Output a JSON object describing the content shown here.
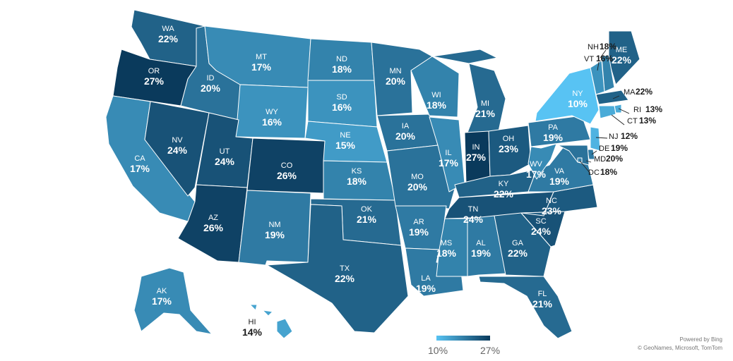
{
  "colors": {
    "scale_min": "#58c3f3",
    "scale_max": "#0a3a5c",
    "label_on_map": "#ffffff",
    "label_off_map": "#1a1a1a",
    "border": "#ffffff"
  },
  "legend": {
    "min_label": "10%",
    "max_label": "27%",
    "min_value": 10,
    "max_value": 27
  },
  "attribution": {
    "line1": "Powered by Bing",
    "line2": "© GeoNames, Microsoft, TomTom"
  },
  "states": [
    {
      "abbr": "WA",
      "value": "22%"
    },
    {
      "abbr": "OR",
      "value": "27%"
    },
    {
      "abbr": "CA",
      "value": "17%"
    },
    {
      "abbr": "NV",
      "value": "24%"
    },
    {
      "abbr": "ID",
      "value": "20%"
    },
    {
      "abbr": "MT",
      "value": "17%"
    },
    {
      "abbr": "WY",
      "value": "16%"
    },
    {
      "abbr": "UT",
      "value": "24%"
    },
    {
      "abbr": "AZ",
      "value": "26%"
    },
    {
      "abbr": "CO",
      "value": "26%"
    },
    {
      "abbr": "NM",
      "value": "19%"
    },
    {
      "abbr": "ND",
      "value": "18%"
    },
    {
      "abbr": "SD",
      "value": "16%"
    },
    {
      "abbr": "NE",
      "value": "15%"
    },
    {
      "abbr": "KS",
      "value": "18%"
    },
    {
      "abbr": "OK",
      "value": "21%"
    },
    {
      "abbr": "TX",
      "value": "22%"
    },
    {
      "abbr": "MN",
      "value": "20%"
    },
    {
      "abbr": "IA",
      "value": "20%"
    },
    {
      "abbr": "MO",
      "value": "20%"
    },
    {
      "abbr": "AR",
      "value": "19%"
    },
    {
      "abbr": "LA",
      "value": "19%"
    },
    {
      "abbr": "WI",
      "value": "18%"
    },
    {
      "abbr": "IL",
      "value": "17%"
    },
    {
      "abbr": "MI",
      "value": "21%"
    },
    {
      "abbr": "IN",
      "value": "27%"
    },
    {
      "abbr": "OH",
      "value": "23%"
    },
    {
      "abbr": "KY",
      "value": "22%"
    },
    {
      "abbr": "TN",
      "value": "24%"
    },
    {
      "abbr": "MS",
      "value": "18%"
    },
    {
      "abbr": "AL",
      "value": "19%"
    },
    {
      "abbr": "GA",
      "value": "22%"
    },
    {
      "abbr": "FL",
      "value": "21%"
    },
    {
      "abbr": "SC",
      "value": "24%"
    },
    {
      "abbr": "NC",
      "value": "23%"
    },
    {
      "abbr": "VA",
      "value": "19%"
    },
    {
      "abbr": "WV",
      "value": "17%"
    },
    {
      "abbr": "PA",
      "value": "19%"
    },
    {
      "abbr": "NY",
      "value": "10%"
    },
    {
      "abbr": "ME",
      "value": "22%"
    },
    {
      "abbr": "NH",
      "value": "18%"
    },
    {
      "abbr": "VT",
      "value": "16%"
    },
    {
      "abbr": "MA",
      "value": "22%"
    },
    {
      "abbr": "RI",
      "value": "13%"
    },
    {
      "abbr": "CT",
      "value": "13%"
    },
    {
      "abbr": "NJ",
      "value": "12%"
    },
    {
      "abbr": "DE",
      "value": "19%"
    },
    {
      "abbr": "MD",
      "value": "20%"
    },
    {
      "abbr": "DC",
      "value": "18%"
    },
    {
      "abbr": "AK",
      "value": "17%"
    },
    {
      "abbr": "HI",
      "value": "14%"
    }
  ]
}
